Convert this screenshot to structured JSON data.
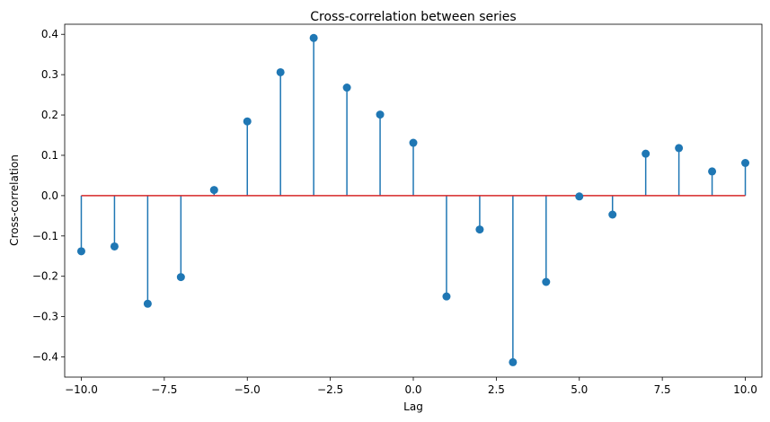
{
  "chart_data": {
    "type": "stem",
    "title": "Cross-correlation between series",
    "xlabel": "Lag",
    "ylabel": "Cross-correlation",
    "xlim": [
      -10.5,
      10.5
    ],
    "ylim": [
      -0.45,
      0.425
    ],
    "xticks": [
      -10,
      -7.5,
      -5,
      -2.5,
      0,
      2.5,
      5,
      7.5,
      10
    ],
    "xtick_labels": [
      "−10.0",
      "−7.5",
      "−5.0",
      "−2.5",
      "0.0",
      "2.5",
      "5.0",
      "7.5",
      "10.0"
    ],
    "yticks": [
      -0.4,
      -0.3,
      -0.2,
      -0.1,
      0,
      0.1,
      0.2,
      0.3,
      0.4
    ],
    "ytick_labels": [
      "−0.4",
      "−0.3",
      "−0.2",
      "−0.1",
      "0.0",
      "0.1",
      "0.2",
      "0.3",
      "0.4"
    ],
    "grid": false,
    "colors": {
      "stem": "#1f77b4",
      "baseline": "#d62728"
    },
    "x": [
      -10,
      -9,
      -8,
      -7,
      -6,
      -5,
      -4,
      -3,
      -2,
      -1,
      0,
      1,
      2,
      3,
      4,
      5,
      6,
      7,
      8,
      9,
      10
    ],
    "y": [
      -0.138,
      -0.126,
      -0.268,
      -0.202,
      0.014,
      0.184,
      0.306,
      0.391,
      0.268,
      0.201,
      0.131,
      -0.25,
      -0.084,
      -0.413,
      -0.214,
      -0.002,
      -0.047,
      0.104,
      0.118,
      0.06,
      0.081
    ]
  }
}
